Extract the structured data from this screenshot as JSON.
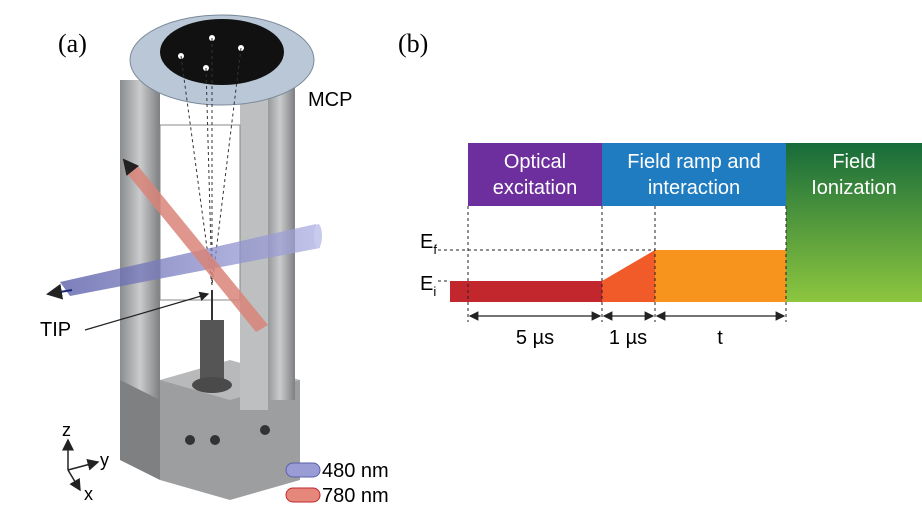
{
  "panel_a": {
    "label": "(a)",
    "mcp": "MCP",
    "tip": "TIP",
    "axes": {
      "z": "z",
      "y": "y",
      "x": "x"
    },
    "legend": [
      {
        "label": "480 nm"
      },
      {
        "label": "780 nm"
      }
    ]
  },
  "panel_b": {
    "label": "(b)",
    "phases": [
      {
        "lines": [
          "Optical",
          "excitation"
        ]
      },
      {
        "lines": [
          "Field ramp and",
          "interaction"
        ]
      },
      {
        "lines": [
          "Field",
          "Ionization"
        ]
      }
    ],
    "levels": [
      {
        "symbol": "E",
        "subscript": "f"
      },
      {
        "symbol": "E",
        "subscript": "i"
      }
    ],
    "durations": [
      "5 µs",
      "1 µs",
      "t"
    ]
  }
}
